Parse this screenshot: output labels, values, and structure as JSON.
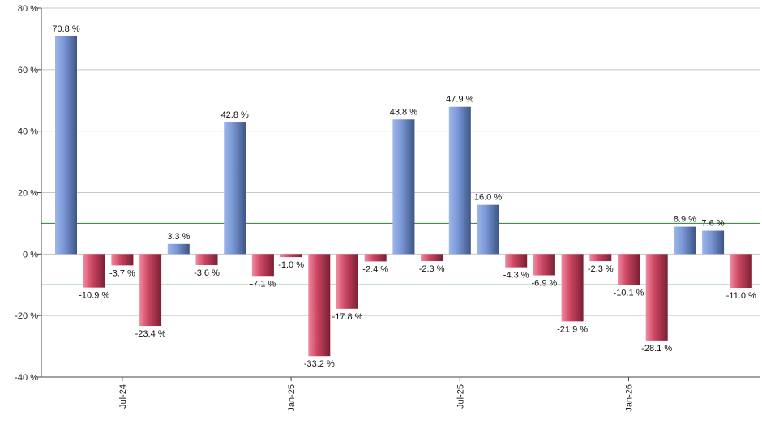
{
  "chart_data": {
    "type": "bar",
    "values": [
      70.8,
      -10.9,
      -3.7,
      -23.4,
      3.3,
      -3.6,
      42.8,
      -7.1,
      -1.0,
      -33.2,
      -17.8,
      -2.4,
      43.8,
      -2.3,
      47.9,
      16.0,
      -4.3,
      -6.9,
      -21.9,
      -2.3,
      -10.1,
      -28.1,
      8.9,
      7.6,
      -11.0
    ],
    "data_labels": [
      "70.8 %",
      "-10.9 %",
      "-3.7 %",
      "-23.4 %",
      "3.3 %",
      "-3.6 %",
      "42.8 %",
      "-7.1 %",
      "-1.0 %",
      "-33.2 %",
      "-17.8 %",
      "-2.4 %",
      "43.8 %",
      "-2.3 %",
      "47.9 %",
      "16.0 %",
      "-4.3 %",
      "-6.9 %",
      "-21.9 %",
      "-2.3 %",
      "-10.1 %",
      "-28.1 %",
      "8.9 %",
      "7.6 %",
      "-11.0 %"
    ],
    "x_ticks": [
      {
        "label": "Jul-24",
        "index": 2
      },
      {
        "label": "Jan-25",
        "index": 8
      },
      {
        "label": "Jul-25",
        "index": 14
      },
      {
        "label": "Jan-26",
        "index": 20
      }
    ],
    "y_ticks": [
      {
        "value": 80,
        "label": "80 %"
      },
      {
        "value": 60,
        "label": "60 %"
      },
      {
        "value": 40,
        "label": "40 %"
      },
      {
        "value": 20,
        "label": "20 %"
      },
      {
        "value": 0,
        "label": "0 %"
      },
      {
        "value": -20,
        "label": "-20 %"
      },
      {
        "value": -40,
        "label": "-40 %"
      }
    ],
    "ylim": [
      -40,
      80
    ],
    "reference_lines": [
      10,
      -10
    ],
    "grid": true,
    "colors": {
      "positive": "#6f8fd0",
      "negative": "#c23c58",
      "reference_line": "#2e7d32",
      "grid": "#c8c8c8"
    },
    "title": "",
    "xlabel": "",
    "ylabel": ""
  }
}
